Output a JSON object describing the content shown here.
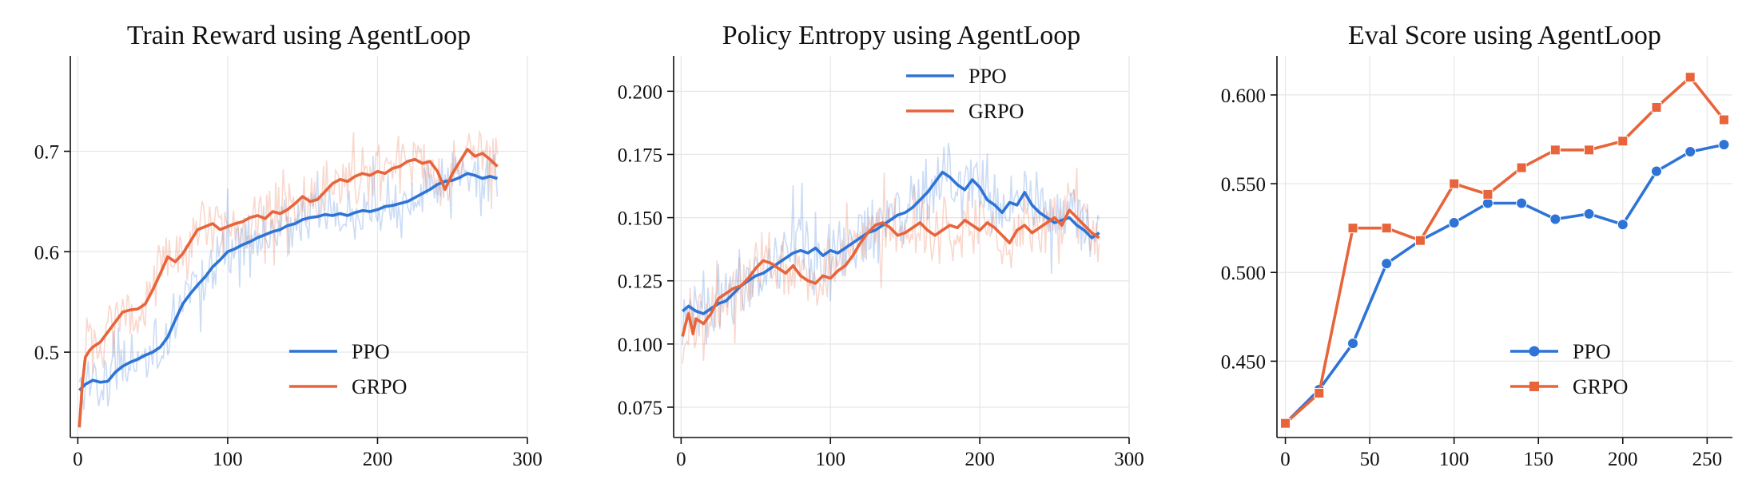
{
  "colors": {
    "ppo": "#2e74d6",
    "grpo": "#e8643a"
  },
  "chart_data": [
    {
      "type": "line",
      "title": "Train Reward using AgentLoop",
      "xlabel": "",
      "ylabel": "",
      "xlim": [
        -5,
        300
      ],
      "ylim": [
        0.415,
        0.795
      ],
      "xticks": [
        0,
        100,
        200,
        300
      ],
      "yticks": [
        0.5,
        0.6,
        0.7
      ],
      "grid": true,
      "legend": "lower-right",
      "smoothed": true,
      "series": [
        {
          "name": "PPO",
          "color_key": "ppo",
          "x": [
            1,
            5,
            10,
            15,
            20,
            25,
            30,
            35,
            40,
            45,
            50,
            55,
            60,
            65,
            70,
            75,
            80,
            85,
            90,
            95,
            100,
            105,
            110,
            115,
            120,
            125,
            130,
            135,
            140,
            145,
            150,
            155,
            160,
            165,
            170,
            175,
            180,
            185,
            190,
            195,
            200,
            205,
            210,
            215,
            220,
            225,
            230,
            235,
            240,
            245,
            250,
            255,
            260,
            265,
            270,
            275,
            280
          ],
          "y": [
            0.462,
            0.468,
            0.472,
            0.47,
            0.471,
            0.48,
            0.486,
            0.49,
            0.493,
            0.497,
            0.5,
            0.505,
            0.515,
            0.532,
            0.548,
            0.558,
            0.567,
            0.575,
            0.585,
            0.592,
            0.6,
            0.603,
            0.607,
            0.61,
            0.614,
            0.617,
            0.62,
            0.622,
            0.626,
            0.628,
            0.632,
            0.634,
            0.635,
            0.637,
            0.636,
            0.638,
            0.636,
            0.639,
            0.641,
            0.64,
            0.642,
            0.645,
            0.646,
            0.648,
            0.65,
            0.654,
            0.658,
            0.662,
            0.667,
            0.67,
            0.671,
            0.674,
            0.678,
            0.676,
            0.673,
            0.675,
            0.673
          ]
        },
        {
          "name": "GRPO",
          "color_key": "grpo",
          "x": [
            1,
            3,
            5,
            8,
            10,
            15,
            20,
            25,
            30,
            35,
            40,
            45,
            50,
            55,
            60,
            65,
            70,
            75,
            80,
            85,
            90,
            95,
            100,
            105,
            110,
            115,
            120,
            125,
            130,
            135,
            140,
            145,
            150,
            155,
            160,
            165,
            170,
            175,
            180,
            185,
            190,
            195,
            200,
            205,
            210,
            215,
            220,
            225,
            230,
            235,
            240,
            245,
            250,
            255,
            260,
            265,
            270,
            275,
            280
          ],
          "y": [
            0.425,
            0.468,
            0.495,
            0.502,
            0.505,
            0.51,
            0.52,
            0.53,
            0.54,
            0.542,
            0.543,
            0.548,
            0.562,
            0.578,
            0.595,
            0.59,
            0.598,
            0.61,
            0.622,
            0.625,
            0.628,
            0.622,
            0.625,
            0.628,
            0.63,
            0.634,
            0.636,
            0.633,
            0.64,
            0.638,
            0.642,
            0.648,
            0.655,
            0.65,
            0.652,
            0.66,
            0.668,
            0.672,
            0.67,
            0.675,
            0.678,
            0.676,
            0.68,
            0.678,
            0.683,
            0.685,
            0.69,
            0.692,
            0.688,
            0.69,
            0.68,
            0.662,
            0.678,
            0.69,
            0.702,
            0.695,
            0.698,
            0.692,
            0.685
          ]
        }
      ]
    },
    {
      "type": "line",
      "title": "Policy Entropy using AgentLoop",
      "xlabel": "",
      "ylabel": "",
      "xlim": [
        -5,
        300
      ],
      "ylim": [
        0.063,
        0.214
      ],
      "xticks": [
        0,
        100,
        200,
        300
      ],
      "yticks": [
        0.075,
        0.1,
        0.125,
        0.15,
        0.175,
        0.2
      ],
      "grid": true,
      "legend": "upper-right",
      "smoothed": true,
      "series": [
        {
          "name": "PPO",
          "color_key": "ppo",
          "x": [
            1,
            5,
            10,
            15,
            20,
            25,
            30,
            35,
            40,
            45,
            50,
            55,
            60,
            65,
            70,
            75,
            80,
            85,
            90,
            95,
            100,
            105,
            110,
            115,
            120,
            125,
            130,
            135,
            140,
            145,
            150,
            155,
            160,
            165,
            170,
            175,
            180,
            185,
            190,
            195,
            200,
            205,
            210,
            215,
            220,
            225,
            230,
            235,
            240,
            245,
            250,
            255,
            260,
            265,
            270,
            275,
            280
          ],
          "y": [
            0.113,
            0.115,
            0.113,
            0.112,
            0.114,
            0.116,
            0.117,
            0.12,
            0.123,
            0.125,
            0.127,
            0.128,
            0.13,
            0.132,
            0.134,
            0.136,
            0.137,
            0.136,
            0.138,
            0.135,
            0.137,
            0.136,
            0.138,
            0.14,
            0.142,
            0.144,
            0.145,
            0.147,
            0.149,
            0.151,
            0.152,
            0.154,
            0.157,
            0.16,
            0.164,
            0.168,
            0.166,
            0.163,
            0.161,
            0.165,
            0.162,
            0.157,
            0.155,
            0.152,
            0.156,
            0.155,
            0.16,
            0.155,
            0.152,
            0.15,
            0.148,
            0.149,
            0.15,
            0.147,
            0.145,
            0.142,
            0.144
          ]
        },
        {
          "name": "GRPO",
          "color_key": "grpo",
          "x": [
            1,
            3,
            5,
            8,
            10,
            15,
            20,
            25,
            30,
            35,
            40,
            45,
            50,
            55,
            60,
            65,
            70,
            75,
            80,
            85,
            90,
            95,
            100,
            105,
            110,
            115,
            120,
            125,
            130,
            135,
            140,
            145,
            150,
            155,
            160,
            165,
            170,
            175,
            180,
            185,
            190,
            195,
            200,
            205,
            210,
            215,
            220,
            225,
            230,
            235,
            240,
            245,
            250,
            255,
            260,
            265,
            270,
            275,
            280
          ],
          "y": [
            0.103,
            0.108,
            0.112,
            0.104,
            0.11,
            0.108,
            0.112,
            0.118,
            0.12,
            0.122,
            0.123,
            0.126,
            0.13,
            0.133,
            0.132,
            0.13,
            0.128,
            0.131,
            0.127,
            0.125,
            0.124,
            0.127,
            0.126,
            0.129,
            0.131,
            0.135,
            0.14,
            0.144,
            0.147,
            0.148,
            0.146,
            0.143,
            0.144,
            0.146,
            0.148,
            0.145,
            0.143,
            0.145,
            0.147,
            0.146,
            0.149,
            0.147,
            0.145,
            0.148,
            0.146,
            0.143,
            0.14,
            0.145,
            0.147,
            0.144,
            0.146,
            0.148,
            0.15,
            0.147,
            0.153,
            0.15,
            0.147,
            0.144,
            0.142
          ]
        }
      ]
    },
    {
      "type": "line",
      "title": "Eval Score using AgentLoop",
      "xlabel": "",
      "ylabel": "",
      "xlim": [
        -5,
        265
      ],
      "ylim": [
        0.407,
        0.622
      ],
      "xticks": [
        0,
        50,
        100,
        150,
        200,
        250
      ],
      "yticks": [
        0.45,
        0.5,
        0.55,
        0.6
      ],
      "grid": true,
      "legend": "lower-right",
      "markers": true,
      "series": [
        {
          "name": "PPO",
          "color_key": "ppo",
          "marker": "circle",
          "x": [
            0,
            20,
            40,
            60,
            80,
            100,
            120,
            140,
            160,
            180,
            200,
            220,
            240,
            260
          ],
          "y": [
            0.415,
            0.434,
            0.46,
            0.505,
            0.518,
            0.528,
            0.539,
            0.539,
            0.53,
            0.533,
            0.527,
            0.557,
            0.568,
            0.572
          ]
        },
        {
          "name": "GRPO",
          "color_key": "grpo",
          "marker": "square",
          "x": [
            0,
            20,
            40,
            60,
            80,
            100,
            120,
            140,
            160,
            180,
            200,
            220,
            240,
            260
          ],
          "y": [
            0.415,
            0.432,
            0.525,
            0.525,
            0.518,
            0.55,
            0.544,
            0.559,
            0.569,
            0.569,
            0.574,
            0.593,
            0.61,
            0.586
          ]
        }
      ]
    }
  ]
}
